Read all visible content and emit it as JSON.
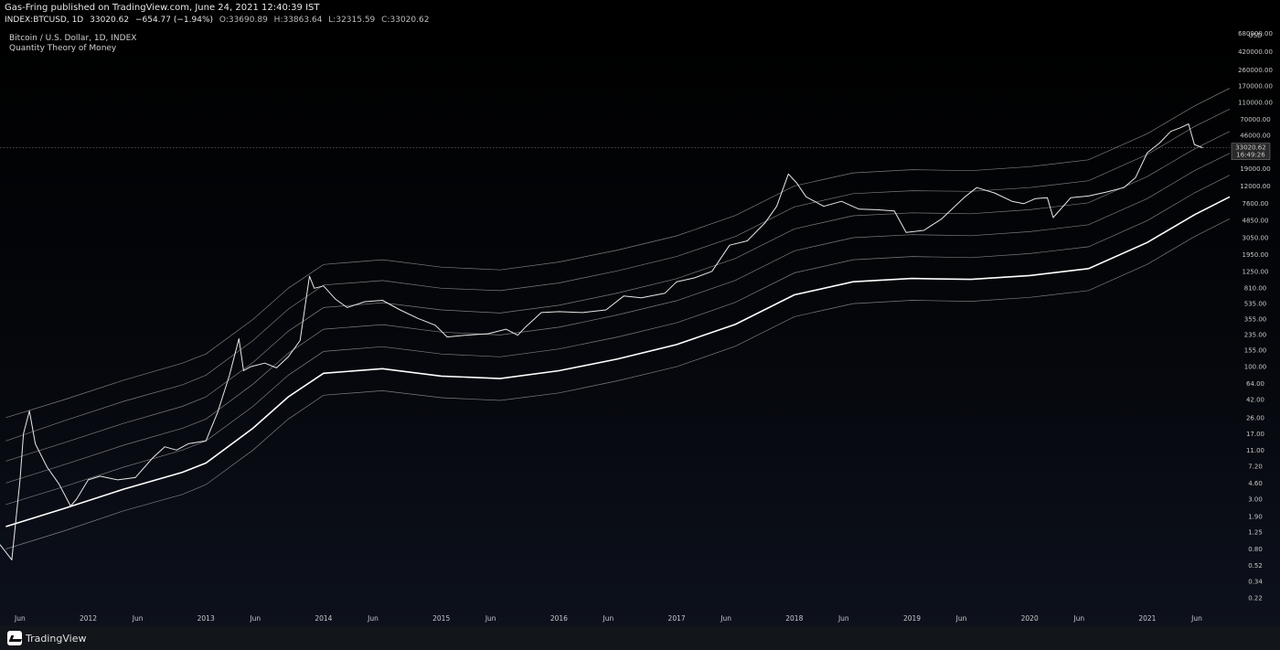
{
  "header": {
    "publisher_line": "Gas-Fring published on TradingView.com, June 24, 2021 12:40:39 IST",
    "symbol": "INDEX:BTCUSD, 1D",
    "last": "33020.62",
    "change": "−654.77 (−1.94%)",
    "open": "O:33690.89",
    "high": "H:33863.64",
    "low": "L:32315.59",
    "close": "C:33020.62"
  },
  "legend": {
    "title": "Bitcoin / U.S. Dollar, 1D, INDEX",
    "subtitle": "Quantity Theory of Money"
  },
  "footer": {
    "logo_text": "TradingView"
  },
  "chart_data": {
    "type": "line",
    "yscale": "log",
    "ylim": [
      0.16,
      800000
    ],
    "xlim": [
      2011.25,
      2021.7
    ],
    "currency_label": "USD",
    "y_ticks": [
      0.22,
      0.34,
      0.52,
      0.8,
      1.25,
      1.9,
      3.0,
      4.6,
      7.2,
      11.0,
      17.0,
      26.0,
      42.0,
      64.0,
      100.0,
      155.0,
      235.0,
      355.0,
      535.0,
      810.0,
      1250.0,
      1950.0,
      3050.0,
      4850.0,
      7600.0,
      12000.0,
      19000.0,
      46000.0,
      70000.0,
      110000.0,
      170000.0,
      260000.0,
      420000.0,
      680000.0
    ],
    "y_tick_labels": [
      "0.22",
      "0.34",
      "0.52",
      "0.80",
      "1.25",
      "1.90",
      "3.00",
      "4.60",
      "7.20",
      "11.00",
      "17.00",
      "26.00",
      "42.00",
      "64.00",
      "100.00",
      "155.00",
      "235.00",
      "355.00",
      "535.00",
      "810.00",
      "1250.00",
      "1950.00",
      "3050.00",
      "4850.00",
      "7600.00",
      "12000.00",
      "19000.00",
      "46000.00",
      "70000.00",
      "110000.00",
      "170000.00",
      "260000.00",
      "420000.00",
      "680000.00"
    ],
    "x_ticks": [
      {
        "x": 2011.42,
        "label": "Jun"
      },
      {
        "x": 2012.0,
        "label": "2012"
      },
      {
        "x": 2012.42,
        "label": "Jun"
      },
      {
        "x": 2013.0,
        "label": "2013"
      },
      {
        "x": 2013.42,
        "label": "Jun"
      },
      {
        "x": 2014.0,
        "label": "2014"
      },
      {
        "x": 2014.42,
        "label": "Jun"
      },
      {
        "x": 2015.0,
        "label": "2015"
      },
      {
        "x": 2015.42,
        "label": "Jun"
      },
      {
        "x": 2016.0,
        "label": "2016"
      },
      {
        "x": 2016.42,
        "label": "Jun"
      },
      {
        "x": 2017.0,
        "label": "2017"
      },
      {
        "x": 2017.42,
        "label": "Jun"
      },
      {
        "x": 2018.0,
        "label": "2018"
      },
      {
        "x": 2018.42,
        "label": "Jun"
      },
      {
        "x": 2019.0,
        "label": "2019"
      },
      {
        "x": 2019.42,
        "label": "Jun"
      },
      {
        "x": 2020.0,
        "label": "2020"
      },
      {
        "x": 2020.42,
        "label": "Jun"
      },
      {
        "x": 2021.0,
        "label": "2021"
      },
      {
        "x": 2021.42,
        "label": "Jun"
      }
    ],
    "price_label": {
      "value": 33020.62,
      "text": "33020.62",
      "countdown": "16:49:26"
    },
    "series": [
      {
        "role": "price",
        "x": [
          2011.25,
          2011.35,
          2011.42,
          2011.45,
          2011.5,
          2011.55,
          2011.65,
          2011.75,
          2011.85,
          2011.9,
          2012.0,
          2012.1,
          2012.25,
          2012.4,
          2012.55,
          2012.65,
          2012.75,
          2012.85,
          2013.0,
          2013.1,
          2013.2,
          2013.28,
          2013.32,
          2013.38,
          2013.5,
          2013.6,
          2013.7,
          2013.8,
          2013.88,
          2013.92,
          2014.0,
          2014.1,
          2014.2,
          2014.35,
          2014.5,
          2014.65,
          2014.8,
          2014.95,
          2015.05,
          2015.2,
          2015.4,
          2015.55,
          2015.65,
          2015.72,
          2015.85,
          2016.0,
          2016.2,
          2016.4,
          2016.55,
          2016.7,
          2016.9,
          2017.0,
          2017.15,
          2017.3,
          2017.45,
          2017.6,
          2017.75,
          2017.85,
          2017.95,
          2018.02,
          2018.1,
          2018.25,
          2018.4,
          2018.55,
          2018.7,
          2018.85,
          2018.95,
          2019.1,
          2019.25,
          2019.45,
          2019.55,
          2019.7,
          2019.85,
          2019.95,
          2020.05,
          2020.15,
          2020.2,
          2020.35,
          2020.5,
          2020.65,
          2020.8,
          2020.9,
          2021.0,
          2021.1,
          2021.2,
          2021.28,
          2021.35,
          2021.4,
          2021.47
        ],
        "y": [
          0.9,
          0.6,
          5,
          17,
          31,
          13,
          7,
          4.5,
          2.5,
          3,
          5,
          5.5,
          5,
          5.3,
          9,
          12,
          11,
          13,
          14,
          30,
          80,
          210,
          90,
          100,
          110,
          97,
          130,
          200,
          1100,
          800,
          850,
          600,
          480,
          560,
          580,
          450,
          360,
          300,
          220,
          230,
          240,
          270,
          230,
          290,
          420,
          430,
          420,
          450,
          650,
          620,
          700,
          950,
          1050,
          1250,
          2500,
          2800,
          4500,
          7000,
          16500,
          13000,
          9000,
          7000,
          8000,
          6500,
          6400,
          6200,
          3500,
          3700,
          5000,
          9000,
          11500,
          10000,
          8000,
          7500,
          8600,
          8800,
          5200,
          8800,
          9200,
          10200,
          11500,
          15000,
          29000,
          37000,
          51000,
          56000,
          62000,
          36000,
          33020
        ]
      },
      {
        "role": "band-6",
        "x": [
          2011.3,
          2011.8,
          2012.3,
          2012.8,
          2013.0,
          2013.4,
          2013.7,
          2014.0,
          2014.5,
          2015.0,
          2015.5,
          2016.0,
          2016.5,
          2017.0,
          2017.5,
          2018.0,
          2018.5,
          2019.0,
          2019.5,
          2020.0,
          2020.5,
          2021.0,
          2021.4,
          2021.7
        ],
        "y": [
          26,
          42,
          70,
          110,
          140,
          350,
          800,
          1500,
          1700,
          1400,
          1300,
          1600,
          2200,
          3200,
          5500,
          12000,
          17000,
          18500,
          18000,
          20000,
          24000,
          48000,
          100000,
          160000
        ]
      },
      {
        "role": "band-5",
        "x": [
          2011.3,
          2011.8,
          2012.3,
          2012.8,
          2013.0,
          2013.4,
          2013.7,
          2014.0,
          2014.5,
          2015.0,
          2015.5,
          2016.0,
          2016.5,
          2017.0,
          2017.5,
          2018.0,
          2018.5,
          2019.0,
          2019.5,
          2020.0,
          2020.5,
          2021.0,
          2021.4,
          2021.7
        ],
        "y": [
          14,
          24,
          40,
          62,
          80,
          200,
          460,
          870,
          980,
          800,
          750,
          920,
          1270,
          1850,
          3150,
          6900,
          9800,
          10600,
          10400,
          11500,
          13800,
          27600,
          58000,
          92000
        ]
      },
      {
        "role": "band-4",
        "x": [
          2011.3,
          2011.8,
          2012.3,
          2012.8,
          2013.0,
          2013.4,
          2013.7,
          2014.0,
          2014.5,
          2015.0,
          2015.5,
          2016.0,
          2016.5,
          2017.0,
          2017.5,
          2018.0,
          2018.5,
          2019.0,
          2019.5,
          2020.0,
          2020.5,
          2021.0,
          2021.4,
          2021.7
        ],
        "y": [
          8.2,
          13.4,
          22.3,
          35,
          45,
          112,
          256,
          480,
          545,
          450,
          415,
          510,
          705,
          1030,
          1760,
          3850,
          5450,
          5900,
          5750,
          6400,
          7700,
          15400,
          32000,
          51000
        ]
      },
      {
        "role": "band-3",
        "x": [
          2011.3,
          2011.8,
          2012.3,
          2012.8,
          2013.0,
          2013.4,
          2013.7,
          2014.0,
          2014.5,
          2015.0,
          2015.5,
          2016.0,
          2016.5,
          2017.0,
          2017.5,
          2018.0,
          2018.5,
          2019.0,
          2019.5,
          2020.0,
          2020.5,
          2021.0,
          2021.4,
          2021.7
        ],
        "y": [
          4.6,
          7.5,
          12.5,
          19.6,
          25,
          63,
          143,
          270,
          305,
          250,
          232,
          285,
          395,
          575,
          985,
          2150,
          3050,
          3300,
          3220,
          3580,
          4300,
          8600,
          18000,
          28500
        ]
      },
      {
        "role": "band-2",
        "x": [
          2011.3,
          2011.8,
          2012.3,
          2012.8,
          2013.0,
          2013.4,
          2013.7,
          2014.0,
          2014.5,
          2015.0,
          2015.5,
          2016.0,
          2016.5,
          2017.0,
          2017.5,
          2018.0,
          2018.5,
          2019.0,
          2019.5,
          2020.0,
          2020.5,
          2021.0,
          2021.4,
          2021.7
        ],
        "y": [
          2.6,
          4.2,
          7,
          11,
          14,
          35,
          80,
          150,
          170,
          140,
          130,
          160,
          220,
          320,
          550,
          1200,
          1700,
          1850,
          1800,
          2000,
          2400,
          4800,
          10000,
          16000
        ]
      },
      {
        "role": "band-1",
        "x": [
          2011.3,
          2011.8,
          2012.3,
          2012.8,
          2013.0,
          2013.4,
          2013.7,
          2014.0,
          2014.5,
          2015.0,
          2015.5,
          2016.0,
          2016.5,
          2017.0,
          2017.5,
          2018.0,
          2018.5,
          2019.0,
          2019.5,
          2020.0,
          2020.5,
          2021.0,
          2021.4,
          2021.7
        ],
        "y": [
          1.45,
          2.35,
          3.9,
          6.1,
          7.8,
          19.6,
          45,
          84,
          95,
          78,
          73,
          90,
          123,
          180,
          308,
          672,
          950,
          1035,
          1010,
          1120,
          1345,
          2690,
          5600,
          9000
        ]
      },
      {
        "role": "band-0",
        "x": [
          2011.3,
          2011.8,
          2012.3,
          2012.8,
          2013.0,
          2013.4,
          2013.7,
          2014.0,
          2014.5,
          2015.0,
          2015.5,
          2016.0,
          2016.5,
          2017.0,
          2017.5,
          2018.0,
          2018.5,
          2019.0,
          2019.5,
          2020.0,
          2020.5,
          2021.0,
          2021.4,
          2021.7
        ],
        "y": [
          0.8,
          1.3,
          2.2,
          3.4,
          4.4,
          11,
          25,
          47,
          53,
          44,
          41,
          50,
          69,
          100,
          172,
          376,
          532,
          580,
          566,
          627,
          753,
          1506,
          3140,
          5040
        ]
      }
    ],
    "colors": {
      "price": "#e8e8e8",
      "band": "#9a9a9a",
      "band_main": "#ffffff",
      "axis_text": "#c8c8c8",
      "price_line": "#8c8c8c"
    }
  }
}
